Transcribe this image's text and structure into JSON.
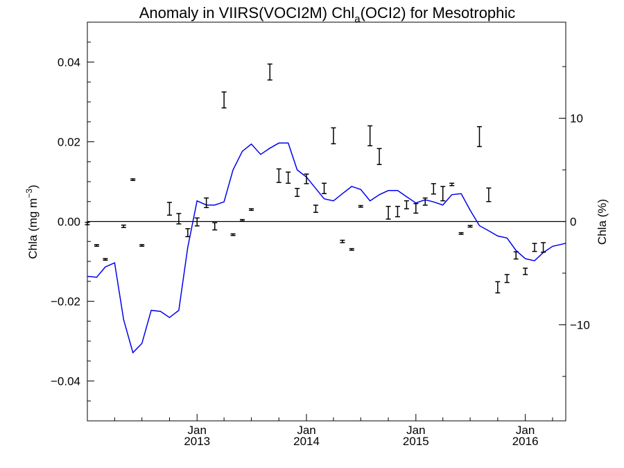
{
  "chart_data": {
    "type": "line",
    "title": {
      "prefix": "Anomaly in VIIRS(VOCI2M) Chl",
      "subscript": "a",
      "suffix": "(OCI2) for Mesotrophic"
    },
    "ylabel_left": {
      "base": "Chla (mg m",
      "superscript": "−3",
      "close": ")"
    },
    "ylabel_right": "Chla (%)",
    "xlim": [
      "2012-01-01",
      "2016-05-15"
    ],
    "ylim_left": [
      -0.05,
      0.05
    ],
    "ylim_right": [
      -19.3,
      19.3
    ],
    "y_ticks_left": [
      {
        "value": 0.04,
        "label": "0.04"
      },
      {
        "value": 0.02,
        "label": "0.02"
      },
      {
        "value": 0.0,
        "label": "0.00"
      },
      {
        "value": -0.02,
        "label": "−0.02"
      },
      {
        "value": -0.04,
        "label": "−0.04"
      }
    ],
    "y_ticks_right": [
      {
        "value": 10,
        "label": "10"
      },
      {
        "value": 0,
        "label": "0"
      },
      {
        "value": -10,
        "label": "−10"
      }
    ],
    "x_ticks": [
      {
        "date": "2013-01-01",
        "month": "Jan",
        "year": "2013"
      },
      {
        "date": "2014-01-01",
        "month": "Jan",
        "year": "2014"
      },
      {
        "date": "2015-01-01",
        "month": "Jan",
        "year": "2015"
      },
      {
        "date": "2016-01-01",
        "month": "Jan",
        "year": "2016"
      }
    ],
    "zero_line": 0,
    "line_color": "#0000ee",
    "error_bar_color": "#000000",
    "series": [
      {
        "type": "line",
        "axis": "right",
        "x": [
          "2012-01-01",
          "2012-02-01",
          "2012-03-01",
          "2012-04-01",
          "2012-05-01",
          "2012-06-01",
          "2012-07-01",
          "2012-08-01",
          "2012-09-01",
          "2012-10-01",
          "2012-11-01",
          "2012-12-01",
          "2013-01-01",
          "2013-02-01",
          "2013-03-01",
          "2013-04-01",
          "2013-05-01",
          "2013-06-01",
          "2013-07-01",
          "2013-08-01",
          "2013-09-01",
          "2013-10-01",
          "2013-11-01",
          "2013-12-01",
          "2014-01-01",
          "2014-02-01",
          "2014-03-01",
          "2014-04-01",
          "2014-05-01",
          "2014-06-01",
          "2014-07-01",
          "2014-08-01",
          "2014-09-01",
          "2014-10-01",
          "2014-11-01",
          "2014-12-01",
          "2015-01-01",
          "2015-02-01",
          "2015-03-01",
          "2015-04-01",
          "2015-05-01",
          "2015-06-01",
          "2015-07-01",
          "2015-08-01",
          "2015-09-01",
          "2015-10-01",
          "2015-11-01",
          "2015-12-01",
          "2016-01-01",
          "2016-02-01",
          "2016-03-01",
          "2016-04-01",
          "2016-05-01",
          "2016-05-15"
        ],
        "y": [
          -5.3,
          -5.4,
          -4.4,
          -4.0,
          -9.5,
          -12.7,
          -11.8,
          -8.6,
          -8.7,
          -9.3,
          -8.6,
          -2.5,
          2.0,
          1.6,
          1.6,
          1.9,
          5.0,
          6.8,
          7.5,
          6.5,
          7.1,
          7.6,
          7.6,
          5.0,
          4.3,
          3.2,
          2.2,
          2.0,
          2.7,
          3.4,
          3.1,
          2.0,
          2.6,
          3.0,
          3.0,
          2.4,
          1.8,
          2.1,
          1.9,
          1.6,
          2.6,
          2.7,
          1.1,
          -0.4,
          -0.9,
          -1.4,
          -1.6,
          -2.8,
          -3.6,
          -3.8,
          -3.0,
          -2.4,
          -2.2,
          -2.1
        ]
      },
      {
        "type": "errorbar",
        "axis": "left",
        "points": [
          {
            "x": "2012-01-01",
            "y": -0.0005,
            "err": 0.0003
          },
          {
            "x": "2012-02-01",
            "y": -0.006,
            "err": 0.0002
          },
          {
            "x": "2012-03-01",
            "y": -0.0095,
            "err": 0.0002
          },
          {
            "x": "2012-05-01",
            "y": -0.0012,
            "err": 0.0003
          },
          {
            "x": "2012-06-01",
            "y": 0.0105,
            "err": 0.0002
          },
          {
            "x": "2012-07-01",
            "y": -0.006,
            "err": 0.0002
          },
          {
            "x": "2012-10-01",
            "y": 0.0032,
            "err": 0.0016
          },
          {
            "x": "2012-11-01",
            "y": 0.0007,
            "err": 0.0013
          },
          {
            "x": "2012-12-01",
            "y": -0.0028,
            "err": 0.001
          },
          {
            "x": "2013-01-01",
            "y": -0.0001,
            "err": 0.001
          },
          {
            "x": "2013-02-01",
            "y": 0.0047,
            "err": 0.0012
          },
          {
            "x": "2013-03-01",
            "y": -0.0012,
            "err": 0.0009
          },
          {
            "x": "2013-04-01",
            "y": 0.0305,
            "err": 0.002
          },
          {
            "x": "2013-05-01",
            "y": -0.0033,
            "err": 0.0002
          },
          {
            "x": "2013-06-01",
            "y": 0.0003,
            "err": 0.0002
          },
          {
            "x": "2013-07-01",
            "y": 0.003,
            "err": 0.0002
          },
          {
            "x": "2013-09-01",
            "y": 0.0375,
            "err": 0.002
          },
          {
            "x": "2013-10-01",
            "y": 0.0115,
            "err": 0.0017
          },
          {
            "x": "2013-11-01",
            "y": 0.011,
            "err": 0.0014
          },
          {
            "x": "2013-12-01",
            "y": 0.0073,
            "err": 0.001
          },
          {
            "x": "2014-01-01",
            "y": 0.0107,
            "err": 0.0012
          },
          {
            "x": "2014-02-01",
            "y": 0.0032,
            "err": 0.0009
          },
          {
            "x": "2014-03-01",
            "y": 0.0083,
            "err": 0.0013
          },
          {
            "x": "2014-04-01",
            "y": 0.0215,
            "err": 0.002
          },
          {
            "x": "2014-05-01",
            "y": -0.005,
            "err": 0.0003
          },
          {
            "x": "2014-06-01",
            "y": -0.007,
            "err": 0.0002
          },
          {
            "x": "2014-07-01",
            "y": 0.0038,
            "err": 0.0002
          },
          {
            "x": "2014-08-01",
            "y": 0.0215,
            "err": 0.0025
          },
          {
            "x": "2014-09-01",
            "y": 0.0163,
            "err": 0.002
          },
          {
            "x": "2014-10-01",
            "y": 0.0022,
            "err": 0.0016
          },
          {
            "x": "2014-11-01",
            "y": 0.0025,
            "err": 0.0013
          },
          {
            "x": "2014-12-01",
            "y": 0.0042,
            "err": 0.001
          },
          {
            "x": "2015-01-01",
            "y": 0.0033,
            "err": 0.0012
          },
          {
            "x": "2015-02-01",
            "y": 0.005,
            "err": 0.0009
          },
          {
            "x": "2015-03-01",
            "y": 0.0082,
            "err": 0.0013
          },
          {
            "x": "2015-04-01",
            "y": 0.007,
            "err": 0.0018
          },
          {
            "x": "2015-05-01",
            "y": 0.0093,
            "err": 0.0003
          },
          {
            "x": "2015-06-01",
            "y": -0.003,
            "err": 0.0002
          },
          {
            "x": "2015-07-01",
            "y": -0.0012,
            "err": 0.0002
          },
          {
            "x": "2015-08-01",
            "y": 0.0213,
            "err": 0.0025
          },
          {
            "x": "2015-09-01",
            "y": 0.0067,
            "err": 0.0017
          },
          {
            "x": "2015-10-01",
            "y": -0.0165,
            "err": 0.0014
          },
          {
            "x": "2015-11-01",
            "y": -0.0143,
            "err": 0.001
          },
          {
            "x": "2015-12-01",
            "y": -0.0085,
            "err": 0.0009
          },
          {
            "x": "2016-01-01",
            "y": -0.0125,
            "err": 0.0008
          },
          {
            "x": "2016-02-01",
            "y": -0.0065,
            "err": 0.001
          },
          {
            "x": "2016-03-01",
            "y": -0.0065,
            "err": 0.0012
          }
        ]
      }
    ]
  }
}
